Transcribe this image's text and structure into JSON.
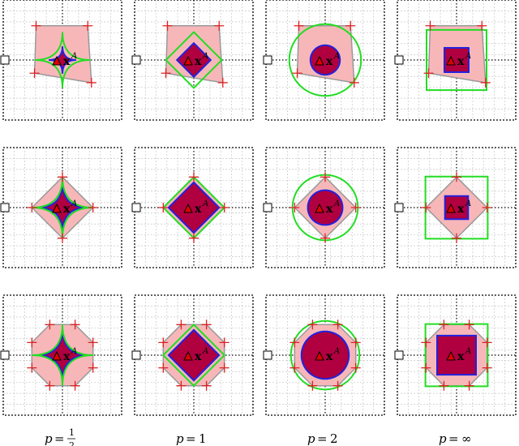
{
  "figure": {
    "columns": [
      {
        "p": "p",
        "value_text": "1/2",
        "value_frac": [
          "1",
          "2"
        ],
        "kind": "astroid"
      },
      {
        "p": "p",
        "value_text": "1",
        "kind": "diamond"
      },
      {
        "p": "p",
        "value_text": "2",
        "kind": "circle"
      },
      {
        "p": "p",
        "value_text": "∞",
        "kind": "square"
      }
    ],
    "rows": [
      "quadrilateral",
      "diamond",
      "octagon"
    ],
    "point_label": "x",
    "point_superscript": "A",
    "colors": {
      "polytope_fill": "#f7b7b9",
      "polytope_edge": "#999999",
      "inner_fill": "#b0003f",
      "inner_edge": "#2222dd",
      "outer_ball": "#22dd22",
      "vertex_marker": "#dd2222",
      "grid": "#bbbbbb",
      "frame": "#000000",
      "triangle": "#dd0000"
    },
    "icons": [
      "triangle-marker-icon",
      "square-marker-icon",
      "plus-vertex-icon"
    ]
  }
}
